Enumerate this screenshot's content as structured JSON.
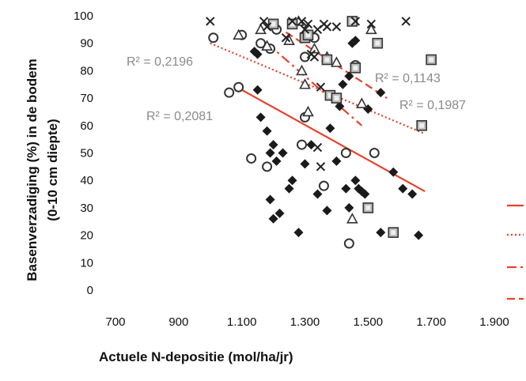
{
  "chart_data": {
    "type": "scatter",
    "ylabel_line1": "Basenverzadiging (%) in de bodem",
    "ylabel_line2": "(0-10 cm diepte)",
    "xlabel": "Actuele N-depositie (mol/ha/jr)",
    "xlim": [
      700,
      1900
    ],
    "ylim": [
      0,
      100
    ],
    "x_ticks": [
      700,
      900,
      1100,
      1300,
      1500,
      1700,
      1900
    ],
    "x_tick_labels": [
      "700",
      "900",
      "1.100",
      "1.300",
      "1.500",
      "1.700",
      "1.900"
    ],
    "y_ticks": [
      0,
      10,
      20,
      30,
      40,
      50,
      60,
      70,
      80,
      90,
      100
    ],
    "y_tick_labels": [
      "0",
      "10",
      "20",
      "30",
      "40",
      "50",
      "60",
      "70",
      "80",
      "90",
      "100"
    ],
    "grid": false,
    "colors": {
      "trend": "#e8412c",
      "marker": "#1a1a1a",
      "marker_fill_square": "#bbbbbb",
      "cross_grey": "#888888"
    },
    "series": [
      {
        "marker": "diamond",
        "points": [
          [
            1140,
            87
          ],
          [
            1150,
            86
          ],
          [
            1160,
            63
          ],
          [
            1180,
            58
          ],
          [
            1190,
            50
          ],
          [
            1200,
            53
          ],
          [
            1210,
            47
          ],
          [
            1230,
            50
          ],
          [
            1250,
            37
          ],
          [
            1190,
            33
          ],
          [
            1220,
            28
          ],
          [
            1260,
            40
          ],
          [
            1300,
            46
          ],
          [
            1320,
            53
          ],
          [
            1340,
            35
          ],
          [
            1370,
            29
          ],
          [
            1280,
            21
          ],
          [
            1380,
            59
          ],
          [
            1400,
            47
          ],
          [
            1410,
            67
          ],
          [
            1420,
            75
          ],
          [
            1440,
            78
          ],
          [
            1450,
            90
          ],
          [
            1460,
            40
          ],
          [
            1470,
            37
          ],
          [
            1480,
            36
          ],
          [
            1490,
            35
          ],
          [
            1430,
            37
          ],
          [
            1440,
            30
          ],
          [
            1460,
            91
          ],
          [
            1500,
            66
          ],
          [
            1540,
            72
          ],
          [
            1580,
            43
          ],
          [
            1610,
            37
          ],
          [
            1640,
            35
          ],
          [
            1660,
            20
          ],
          [
            1540,
            21
          ],
          [
            1200,
            26
          ],
          [
            1150,
            73
          ]
        ]
      },
      {
        "marker": "circle",
        "points": [
          [
            1010,
            92
          ],
          [
            1060,
            72
          ],
          [
            1090,
            74
          ],
          [
            1100,
            93
          ],
          [
            1130,
            48
          ],
          [
            1160,
            90
          ],
          [
            1180,
            45
          ],
          [
            1190,
            88
          ],
          [
            1200,
            97
          ],
          [
            1210,
            95
          ],
          [
            1290,
            53
          ],
          [
            1300,
            63
          ],
          [
            1300,
            85
          ],
          [
            1330,
            92
          ],
          [
            1360,
            38
          ],
          [
            1430,
            50
          ],
          [
            1460,
            82
          ],
          [
            1440,
            17
          ],
          [
            1520,
            50
          ]
        ]
      },
      {
        "marker": "triangle",
        "points": [
          [
            1090,
            93
          ],
          [
            1160,
            95
          ],
          [
            1180,
            89
          ],
          [
            1250,
            91
          ],
          [
            1280,
            98
          ],
          [
            1290,
            80
          ],
          [
            1300,
            75
          ],
          [
            1310,
            65
          ],
          [
            1330,
            88
          ],
          [
            1370,
            85
          ],
          [
            1400,
            83
          ],
          [
            1450,
            26
          ],
          [
            1480,
            68
          ],
          [
            1510,
            95
          ]
        ]
      },
      {
        "marker": "square",
        "points": [
          [
            1200,
            97
          ],
          [
            1260,
            97
          ],
          [
            1300,
            92
          ],
          [
            1310,
            93
          ],
          [
            1370,
            84
          ],
          [
            1380,
            71
          ],
          [
            1400,
            70
          ],
          [
            1450,
            98
          ],
          [
            1460,
            81
          ],
          [
            1500,
            30
          ],
          [
            1530,
            90
          ],
          [
            1580,
            21
          ],
          [
            1670,
            60
          ],
          [
            1700,
            84
          ]
        ]
      },
      {
        "marker": "cross",
        "points": [
          [
            1000,
            98
          ],
          [
            1170,
            98
          ],
          [
            1180,
            96
          ],
          [
            1260,
            98
          ],
          [
            1290,
            98
          ],
          [
            1310,
            97
          ],
          [
            1330,
            85
          ],
          [
            1340,
            95
          ],
          [
            1370,
            96
          ],
          [
            1400,
            96
          ],
          [
            1460,
            98
          ],
          [
            1510,
            97
          ],
          [
            1620,
            98
          ],
          [
            1340,
            52
          ],
          [
            1350,
            45
          ],
          [
            1360,
            97
          ],
          [
            1320,
            86
          ],
          [
            1350,
            74
          ],
          [
            1300,
            95
          ],
          [
            1240,
            92
          ]
        ]
      }
    ],
    "trendlines": [
      {
        "style": "solid",
        "x": [
          1100,
          1680
        ],
        "y": [
          73,
          36
        ],
        "r2_label": "R² = 0,2081"
      },
      {
        "style": "dotted",
        "x": [
          1000,
          1680
        ],
        "y": [
          90,
          57
        ],
        "r2_label": "R² = 0,1987"
      },
      {
        "style": "dash-dot",
        "x": [
          1180,
          1480
        ],
        "y": [
          90,
          60
        ],
        "r2_label": "R² = 0,2196"
      },
      {
        "style": "dashed",
        "x": [
          1240,
          1560
        ],
        "y": [
          94,
          70
        ],
        "r2_label": "R² = 0,1143"
      }
    ]
  }
}
